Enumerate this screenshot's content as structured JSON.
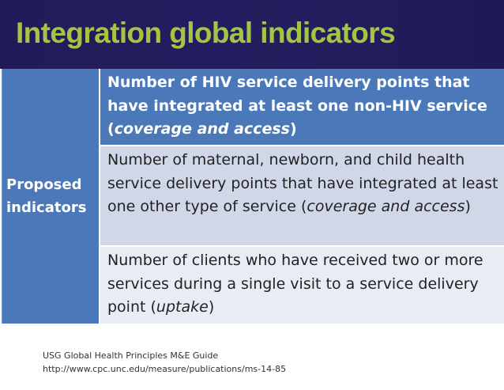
{
  "slide": {
    "title": "Integration global indicators"
  },
  "table": {
    "row_header_line1": "Proposed",
    "row_header_line2": "indicators",
    "rows": [
      {
        "text": "Number of HIV service delivery points that have integrated at least one non-HIV service (",
        "em": "coverage and access",
        "close": ")"
      },
      {
        "text": "Number of maternal, newborn, and child health service delivery points that have integrated at least one other type of service (",
        "em": "coverage and access",
        "close": ")"
      },
      {
        "text": "Number of clients who have received two or more services during a single visit to a service delivery point (",
        "em": "uptake",
        "close": ")"
      }
    ]
  },
  "footer": {
    "line1": "USG Global Health Principles M&E Guide",
    "line2": "http://www.cpc.unc.edu/measure/publications/ms-14-85"
  },
  "colors": {
    "header_bg": "#211b5b",
    "title": "#a5c444",
    "table_blue": "#4a78b8",
    "row2_bg": "#d0d7e7",
    "row3_bg": "#e8ecf4"
  }
}
